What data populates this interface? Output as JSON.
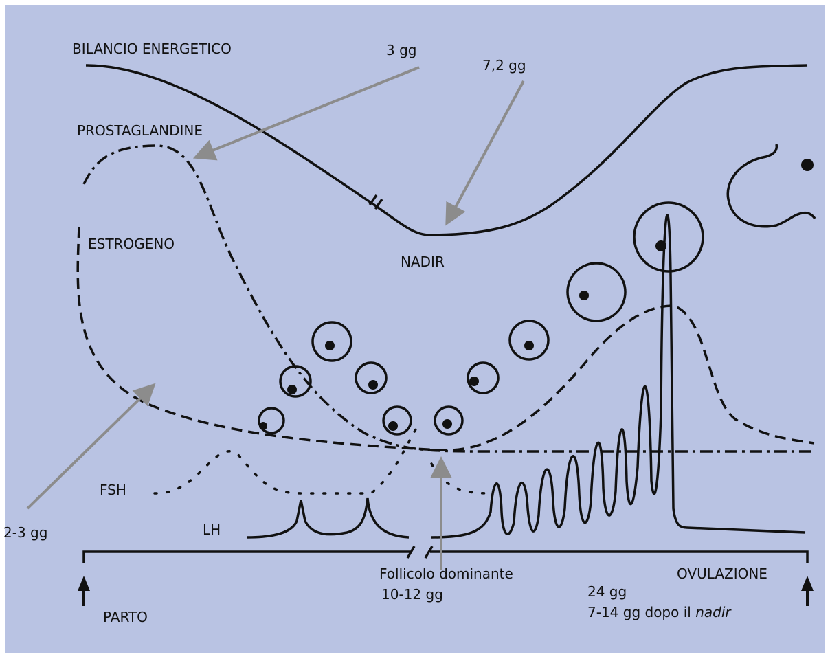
{
  "curves": {
    "energy_balance": "BILANCIO ENERGETICO",
    "prostaglandins": "PROSTAGLANDINE",
    "estrogen": "ESTROGENO",
    "fsh": "FSH",
    "lh": "LH"
  },
  "annotations": {
    "prostaglandin_time": "3 gg",
    "nadir_time": "7,2 gg",
    "nadir": "NADIR",
    "estrogen_time": "2-3 gg",
    "dominant_follicle": "Follicolo dominante",
    "dominant_follicle_time": "10-12 gg"
  },
  "timeline": {
    "start": "PARTO",
    "end": "OVULAZIONE",
    "end_time": "24 gg",
    "end_note": "7-14 gg dopo il",
    "end_note_italic": "nadir"
  }
}
